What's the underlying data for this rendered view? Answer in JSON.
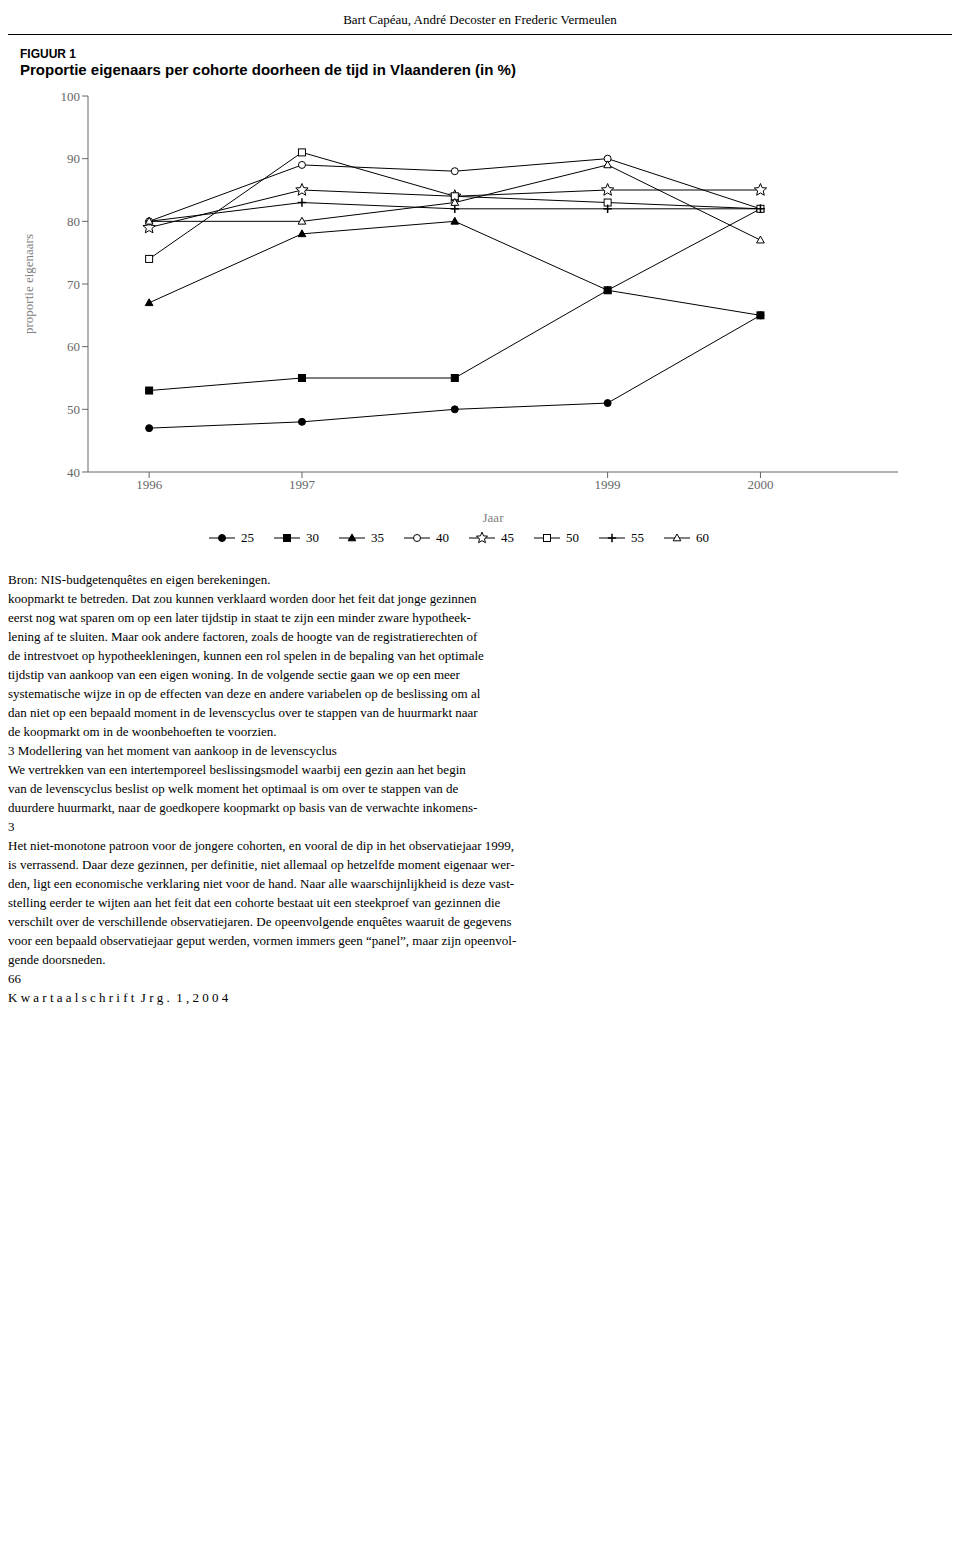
{
  "chart_data": {
    "type": "line",
    "title": "Proportie eigenaars per cohorte doorheen de tijd in Vlaanderen (in %)",
    "subtitle": "FIGUUR 1",
    "x_label": "Jaar",
    "y_label": "proportie eigenaars",
    "x": [
      1996,
      1997,
      1998,
      1999,
      2000
    ],
    "xlim": [
      1995.6,
      2000.9
    ],
    "xticks": [
      1996,
      1997,
      1999,
      2000
    ],
    "ylim": [
      40,
      100
    ],
    "yticks": [
      40,
      50,
      60,
      70,
      80,
      90,
      100
    ],
    "grid": false,
    "legend": "bottom",
    "color": "#000000",
    "series": [
      {
        "name": "25",
        "values": [
          47,
          48,
          50,
          51,
          65
        ],
        "marker": "circle"
      },
      {
        "name": "30",
        "values": [
          53,
          55,
          55,
          69,
          65
        ],
        "marker": "square"
      },
      {
        "name": "35",
        "values": [
          67,
          78,
          80,
          69,
          82
        ],
        "marker": "triangle"
      },
      {
        "name": "40",
        "values": [
          80,
          89,
          88,
          90,
          82
        ],
        "marker": "circle-open"
      },
      {
        "name": "45",
        "values": [
          79,
          85,
          84,
          85,
          85
        ],
        "marker": "star-open"
      },
      {
        "name": "50",
        "values": [
          74,
          91,
          84,
          83,
          82
        ],
        "marker": "square-open"
      },
      {
        "name": "55",
        "values": [
          80,
          83,
          82,
          82,
          82
        ],
        "marker": "plus"
      },
      {
        "name": "60",
        "values": [
          80,
          80,
          83,
          89,
          77
        ],
        "marker": "triangle-open"
      }
    ],
    "annotations": [
      "Bart Capéau, André Decoster en Frederic Vermeulen",
      "Bron: NIS-budgetenquêtes en eigen berekeningen.",
      "koopmarkt te betreden. Dat zou kunnen verklaard worden door het feit dat jonge gezinnen",
      "eerst nog wat sparen om op een later tijdstip in staat te zijn een minder zware hypotheek-",
      "lening af te sluiten. Maar ook andere factoren, zoals de hoogte van de registratierechten of",
      "de intrestvoet op hypotheekleningen, kunnen een rol spelen in de bepaling van het optimale",
      "tijdstip van aankoop van een eigen woning. In de volgende sectie gaan we op een meer",
      "systematische wijze in op de effecten van deze en andere variabelen op de beslissing om al",
      "dan niet op een bepaald moment in de levenscyclus over te stappen van de huurmarkt naar",
      "de koopmarkt om in de woonbehoeften te voorzien.",
      "3 Modellering van het moment van aankoop in de levenscyclus",
      "We vertrekken van een intertemporeel beslissingsmodel waarbij een gezin aan het begin",
      "van de levenscyclus beslist op welk moment het optimaal is om over te stappen van de",
      "duurdere huurmarkt, naar de goedkopere koopmarkt op basis van de verwachte inkomens-",
      "3",
      "Het niet-monotone patroon voor de jongere cohorten, en vooral de dip in het observatiejaar 1999,",
      "is verrassend. Daar deze gezinnen, per definitie, niet allemaal op hetzelfde moment eigenaar wer-",
      "den, ligt een economische verklaring niet voor de hand. Naar alle waarschijnlijkheid is deze vast-",
      "stelling eerder te wijten aan het feit dat een cohorte bestaat uit een steekproef van gezinnen die",
      "verschilt over de verschillende observatiejaren. De opeenvolgende enquêtes waaruit de gegevens",
      "voor een bepaald observatiejaar geput werden, vormen immers geen “panel”, maar zijn opeenvol-",
      "gende doorsneden.",
      "66",
      "K w a r t a a l s c h r i f t  J r g .  1 , 2 0 0 4"
    ]
  }
}
